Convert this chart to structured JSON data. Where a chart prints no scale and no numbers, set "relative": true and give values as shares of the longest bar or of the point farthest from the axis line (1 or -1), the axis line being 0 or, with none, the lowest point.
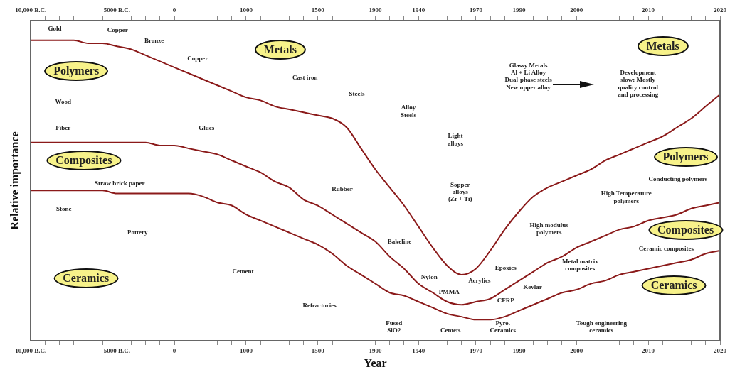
{
  "chart_data": {
    "type": "line",
    "relative": true,
    "xlabel": "Year",
    "ylabel": "Relative importance",
    "categories": [
      "10,000 B.C.",
      null,
      null,
      null,
      null,
      null,
      "5000 B.C.",
      null,
      null,
      null,
      "0",
      null,
      null,
      null,
      null,
      "1000",
      null,
      null,
      null,
      null,
      "1500",
      null,
      null,
      null,
      "1900",
      null,
      null,
      "1940",
      null,
      null,
      null,
      "1970",
      null,
      null,
      "1990",
      null,
      null,
      null,
      "2000",
      null,
      null,
      null,
      null,
      "2010",
      null,
      null,
      null,
      null,
      "2020"
    ],
    "series": [
      {
        "color": "#8b1a1a",
        "values": [
          1,
          1,
          1,
          1,
          0.99,
          0.99,
          0.98,
          0.97,
          0.95,
          0.93,
          0.91,
          0.89,
          0.87,
          0.85,
          0.83,
          0.81,
          0.8,
          0.78,
          0.77,
          0.76,
          0.75,
          0.74,
          0.71,
          0.64,
          0.57,
          0.51,
          0.45,
          0.38,
          0.31,
          0.25,
          0.22,
          0.24,
          0.3,
          0.37,
          0.43,
          0.48,
          0.51,
          0.53,
          0.55,
          0.57,
          0.6,
          0.62,
          0.64,
          0.66,
          0.68,
          0.71,
          0.74,
          0.78,
          0.82
        ]
      },
      {
        "color": "#8b1a1a",
        "values": [
          0.66,
          0.66,
          0.66,
          0.66,
          0.66,
          0.66,
          0.66,
          0.66,
          0.66,
          0.65,
          0.65,
          0.64,
          0.63,
          0.62,
          0.6,
          0.58,
          0.56,
          0.53,
          0.51,
          0.47,
          0.45,
          0.42,
          0.39,
          0.36,
          0.33,
          0.28,
          0.24,
          0.19,
          0.16,
          0.13,
          0.12,
          0.13,
          0.14,
          0.17,
          0.2,
          0.23,
          0.26,
          0.28,
          0.31,
          0.33,
          0.35,
          0.37,
          0.38,
          0.4,
          0.41,
          0.42,
          0.44,
          0.45,
          0.46
        ]
      },
      {
        "color": "#8b1a1a",
        "values": [
          0.5,
          0.5,
          0.5,
          0.5,
          0.5,
          0.5,
          0.49,
          0.49,
          0.49,
          0.49,
          0.49,
          0.49,
          0.48,
          0.46,
          0.45,
          0.42,
          0.4,
          0.38,
          0.36,
          0.34,
          0.32,
          0.29,
          0.25,
          0.22,
          0.19,
          0.16,
          0.15,
          0.13,
          0.11,
          0.09,
          0.08,
          0.07,
          0.07,
          0.08,
          0.1,
          0.12,
          0.14,
          0.16,
          0.17,
          0.19,
          0.2,
          0.22,
          0.23,
          0.24,
          0.25,
          0.26,
          0.27,
          0.29,
          0.3
        ]
      }
    ],
    "marker": "none",
    "line_style": "solid",
    "grid": false,
    "legend": false,
    "annotations": [
      "Gold",
      "Copper",
      "Bronze",
      "Metals",
      "Copper",
      "Polymers",
      "Cast iron",
      "Steels",
      "Wood",
      "Fiber",
      "Glues",
      "Alloy\nSteels",
      "Light\nalloys",
      "Composites",
      "Straw brick paper",
      "Rubber",
      "Stone",
      "Sopper\nalloys\n(Zr + Ti)",
      "Pottery",
      "Ceramics",
      "Cement",
      "Refractories",
      "Bakeline",
      "Nylon",
      "PMMA",
      "Acrylics",
      "Epoxies",
      "CFRP",
      "Kevlar",
      "Fused\nSiO2",
      "Cemets",
      "Pyro.\nCeramics",
      "Tough engineering\nceramics",
      "Metal matrix\ncomposites",
      "High modulus\npolymers",
      "High Temperature\npolymers",
      "Ceramic composites",
      "Composites",
      "Ceramics",
      "Polymers",
      "Conducting polymers",
      "Metals",
      "Glassy Metals\nAl + Li Alloy\nDual-phase steels\nNew upper alloy",
      "Development\nslow: Mostly\nquality control\nand processing"
    ]
  }
}
